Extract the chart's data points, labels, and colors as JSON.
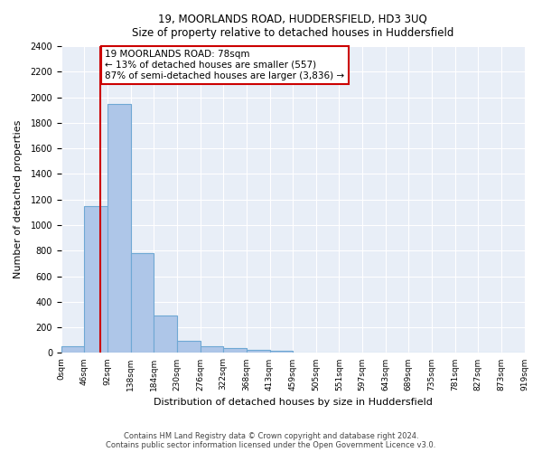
{
  "title1": "19, MOORLANDS ROAD, HUDDERSFIELD, HD3 3UQ",
  "title2": "Size of property relative to detached houses in Huddersfield",
  "xlabel": "Distribution of detached houses by size in Huddersfield",
  "ylabel": "Number of detached properties",
  "bar_values": [
    50,
    1150,
    1950,
    780,
    290,
    95,
    50,
    35,
    25,
    15,
    0,
    0,
    0,
    0,
    0,
    0,
    0,
    0,
    0,
    0
  ],
  "categories": [
    "0sqm",
    "46sqm",
    "92sqm",
    "138sqm",
    "184sqm",
    "230sqm",
    "276sqm",
    "322sqm",
    "368sqm",
    "413sqm",
    "459sqm",
    "505sqm",
    "551sqm",
    "597sqm",
    "643sqm",
    "689sqm",
    "735sqm",
    "781sqm",
    "827sqm",
    "873sqm",
    "919sqm"
  ],
  "bar_color": "#aec6e8",
  "bar_edge_color": "#6fa8d4",
  "vline_color": "#cc0000",
  "annotation_text": "19 MOORLANDS ROAD: 78sqm\n← 13% of detached houses are smaller (557)\n87% of semi-detached houses are larger (3,836) →",
  "annotation_box_color": "#ffffff",
  "annotation_box_edge": "#cc0000",
  "ylim": [
    0,
    2400
  ],
  "yticks": [
    0,
    200,
    400,
    600,
    800,
    1000,
    1200,
    1400,
    1600,
    1800,
    2000,
    2200,
    2400
  ],
  "background_color": "#e8eef7",
  "footer1": "Contains HM Land Registry data © Crown copyright and database right 2024.",
  "footer2": "Contains public sector information licensed under the Open Government Licence v3.0."
}
